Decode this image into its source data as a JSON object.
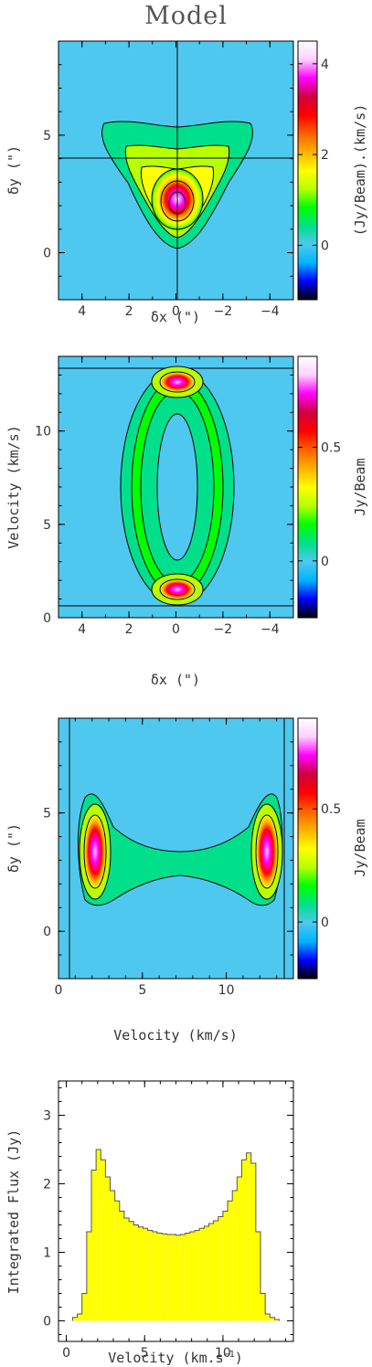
{
  "page": {
    "title": "Model"
  },
  "colormap": [
    "#000000",
    "#0000ff",
    "#00b4ff",
    "#4fc8ef",
    "#00e08a",
    "#00ff00",
    "#b8ff00",
    "#ffff00",
    "#ffb000",
    "#ff6000",
    "#ff0000",
    "#d00040",
    "#ff00ff",
    "#ffd0ff",
    "#ffffff"
  ],
  "chart_data": [
    {
      "type": "heatmap",
      "title": "",
      "xlabel": "δx (\")",
      "ylabel": "δy (\")",
      "colorbar_label": "(Jy/Beam).(km/s)",
      "xlim": [
        5,
        -5
      ],
      "ylim": [
        -2,
        9
      ],
      "xticks": [
        4,
        2,
        0,
        -2,
        -4
      ],
      "xticklabels": [
        "4",
        "2",
        "0",
        "−2",
        "−4"
      ],
      "yticks": [
        0,
        5
      ],
      "yticklabels": [
        "0",
        "5"
      ],
      "colorbar_range": [
        -1.2,
        4.5
      ],
      "colorbar_ticks": [
        0,
        2,
        4
      ],
      "colorbar_ticklabels": [
        "0",
        "2",
        "4"
      ],
      "crosshair": {
        "x": 0,
        "y": 3
      },
      "peak": {
        "x": 0,
        "y": 2,
        "value": 4.3
      },
      "contour_levels": [
        0.3,
        1,
        1.5,
        2,
        2.5,
        3,
        3.5
      ]
    },
    {
      "type": "heatmap",
      "title": "",
      "xlabel": "δx (\")",
      "ylabel": "Velocity (km/s)",
      "colorbar_label": "Jy/Beam",
      "xlim": [
        5,
        -5
      ],
      "ylim": [
        0,
        14
      ],
      "xticks": [
        4,
        2,
        0,
        -2,
        -4
      ],
      "xticklabels": [
        "4",
        "2",
        "0",
        "−2",
        "−4"
      ],
      "yticks": [
        0,
        5,
        10
      ],
      "yticklabels": [
        "0",
        "5",
        "10"
      ],
      "colorbar_range": [
        -0.25,
        0.9
      ],
      "colorbar_ticks": [
        0,
        0.5
      ],
      "colorbar_ticklabels": [
        "0",
        "0.5"
      ],
      "hlines": [
        0.6,
        13.4
      ],
      "peaks": [
        {
          "x": 0,
          "y": 2,
          "value": 0.85
        },
        {
          "x": 0,
          "y": 12.3,
          "value": 0.85
        }
      ],
      "contour_levels": [
        0.05,
        0.15,
        0.25,
        0.35,
        0.45,
        0.55,
        0.65
      ]
    },
    {
      "type": "heatmap",
      "title": "",
      "xlabel": "Velocity (km/s)",
      "ylabel": "δy (\")",
      "colorbar_label": "Jy/Beam",
      "xlim": [
        0,
        14
      ],
      "ylim": [
        -2,
        9
      ],
      "xticks": [
        0,
        5,
        10
      ],
      "xticklabels": [
        "0",
        "5",
        "10"
      ],
      "yticks": [
        0,
        5
      ],
      "yticklabels": [
        "0",
        "5"
      ],
      "colorbar_range": [
        -0.25,
        0.9
      ],
      "colorbar_ticks": [
        0,
        0.5
      ],
      "colorbar_ticklabels": [
        "0",
        "0.5"
      ],
      "vlines": [
        0.6,
        13.4
      ],
      "peaks": [
        {
          "x": 1.9,
          "y": 2.5,
          "value": 0.88
        },
        {
          "x": 12.2,
          "y": 2.5,
          "value": 0.88
        }
      ],
      "contour_levels": [
        0.05,
        0.15,
        0.25,
        0.35,
        0.45,
        0.55,
        0.65,
        0.75
      ]
    },
    {
      "type": "bar",
      "title": "",
      "xlabel": "Velocity (km.s",
      "xlabel_sup": "−1",
      "xlabel_tail": ")",
      "ylabel": "Integrated Flux (Jy)",
      "xlim": [
        -0.5,
        14.5
      ],
      "ylim": [
        -0.3,
        3.5
      ],
      "xticks": [
        0,
        5,
        10
      ],
      "xticklabels": [
        "0",
        "5",
        "10"
      ],
      "yticks": [
        0,
        1,
        2,
        3
      ],
      "yticklabels": [
        "0",
        "1",
        "2",
        "3"
      ],
      "fill_color": "#ffff00",
      "bin_width": 0.3,
      "x": [
        0.55,
        0.85,
        1.15,
        1.45,
        1.75,
        2.05,
        2.35,
        2.65,
        2.95,
        3.25,
        3.55,
        3.85,
        4.15,
        4.45,
        4.75,
        5.05,
        5.35,
        5.65,
        5.95,
        6.25,
        6.55,
        6.85,
        7.15,
        7.45,
        7.75,
        8.05,
        8.35,
        8.65,
        8.95,
        9.25,
        9.55,
        9.85,
        10.15,
        10.45,
        10.75,
        11.05,
        11.35,
        11.65,
        11.95,
        12.25,
        12.55,
        12.85,
        13.15,
        13.45
      ],
      "values": [
        0.05,
        0.1,
        0.4,
        1.3,
        2.2,
        2.5,
        2.35,
        2.1,
        1.9,
        1.75,
        1.6,
        1.5,
        1.45,
        1.4,
        1.37,
        1.35,
        1.32,
        1.3,
        1.28,
        1.27,
        1.26,
        1.26,
        1.25,
        1.26,
        1.28,
        1.3,
        1.32,
        1.35,
        1.38,
        1.42,
        1.46,
        1.52,
        1.6,
        1.75,
        1.9,
        2.1,
        2.35,
        2.45,
        2.3,
        1.3,
        0.4,
        0.1,
        0.05,
        0.02
      ]
    }
  ]
}
